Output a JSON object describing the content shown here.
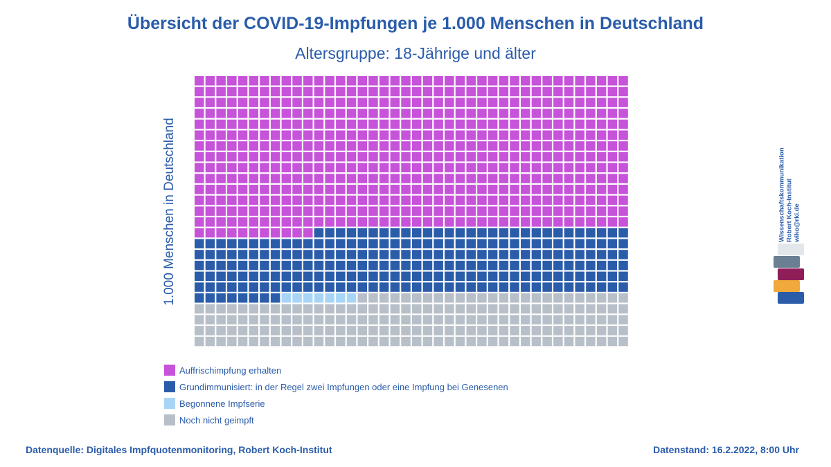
{
  "title": "Übersicht der COVID-19-Impfungen je 1.000 Menschen in Deutschland",
  "subtitle": "Altersgruppe: 18-Jährige und älter",
  "ylabel": "1.000 Menschen in Deutschland",
  "footer": {
    "source": "Datenquelle: Digitales Impfquotenmonitoring, Robert Koch-Institut",
    "date": "Datenstand: 16.2.2022, 8:00 Uhr"
  },
  "logo": {
    "lines": [
      "Wissenschaftskommunikation",
      "Robert Koch-Institut",
      "wiko@rki.de"
    ],
    "bar_colors": [
      "#e3e6ea",
      "#6b7f93",
      "#8e1d58",
      "#f0a93a",
      "#2a5caa"
    ]
  },
  "chart_data": {
    "type": "waffle",
    "total": 1000,
    "rows": 25,
    "columns": 40,
    "fill_order": "top-left to bottom-right, row by row",
    "title": "Übersicht der COVID-19-Impfungen je 1.000 Menschen in Deutschland",
    "subtitle": "Altersgruppe: 18-Jährige und älter",
    "ylabel": "1.000 Menschen in Deutschland",
    "categories": [
      {
        "label": "Auffrischimpfung erhalten",
        "value": 571,
        "color": "#c653d9"
      },
      {
        "label": "Grundimmunisiert: in der Regel zwei Impfungen oder eine Impfung bei Genesenen",
        "value": 237,
        "color": "#2a5caa"
      },
      {
        "label": "Begonnene Impfserie",
        "value": 7,
        "color": "#a8d5f5"
      },
      {
        "label": "Noch nicht geimpft",
        "value": 185,
        "color": "#b7bfc8"
      }
    ]
  }
}
